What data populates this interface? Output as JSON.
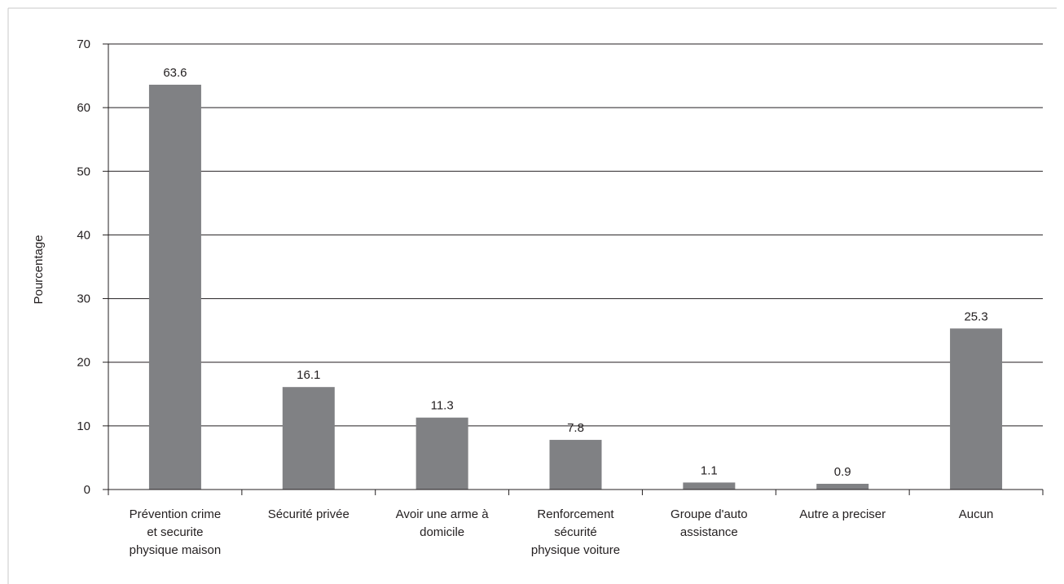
{
  "chart_data": {
    "type": "bar",
    "categories": [
      [
        "Prévention crime",
        "et securite",
        "physique maison"
      ],
      [
        "Sécurité privée"
      ],
      [
        "Avoir une arme à",
        "domicile"
      ],
      [
        "Renforcement",
        "sécurité",
        "physique voiture"
      ],
      [
        "Groupe d'auto",
        "assistance"
      ],
      [
        "Autre a preciser"
      ],
      [
        "Aucun"
      ]
    ],
    "values": [
      63.6,
      16.1,
      11.3,
      7.8,
      1.1,
      0.9,
      25.3
    ],
    "value_labels": [
      "63.6",
      "16.1",
      "11.3",
      "7.8",
      "1.1",
      "0.9",
      "25.3"
    ],
    "ylabel": "Pourcentage",
    "ylim": [
      0,
      70
    ],
    "yticks": [
      0,
      10,
      20,
      30,
      40,
      50,
      60,
      70
    ],
    "grid": true,
    "bar_color": "#808184",
    "axis_color": "#231f20"
  }
}
